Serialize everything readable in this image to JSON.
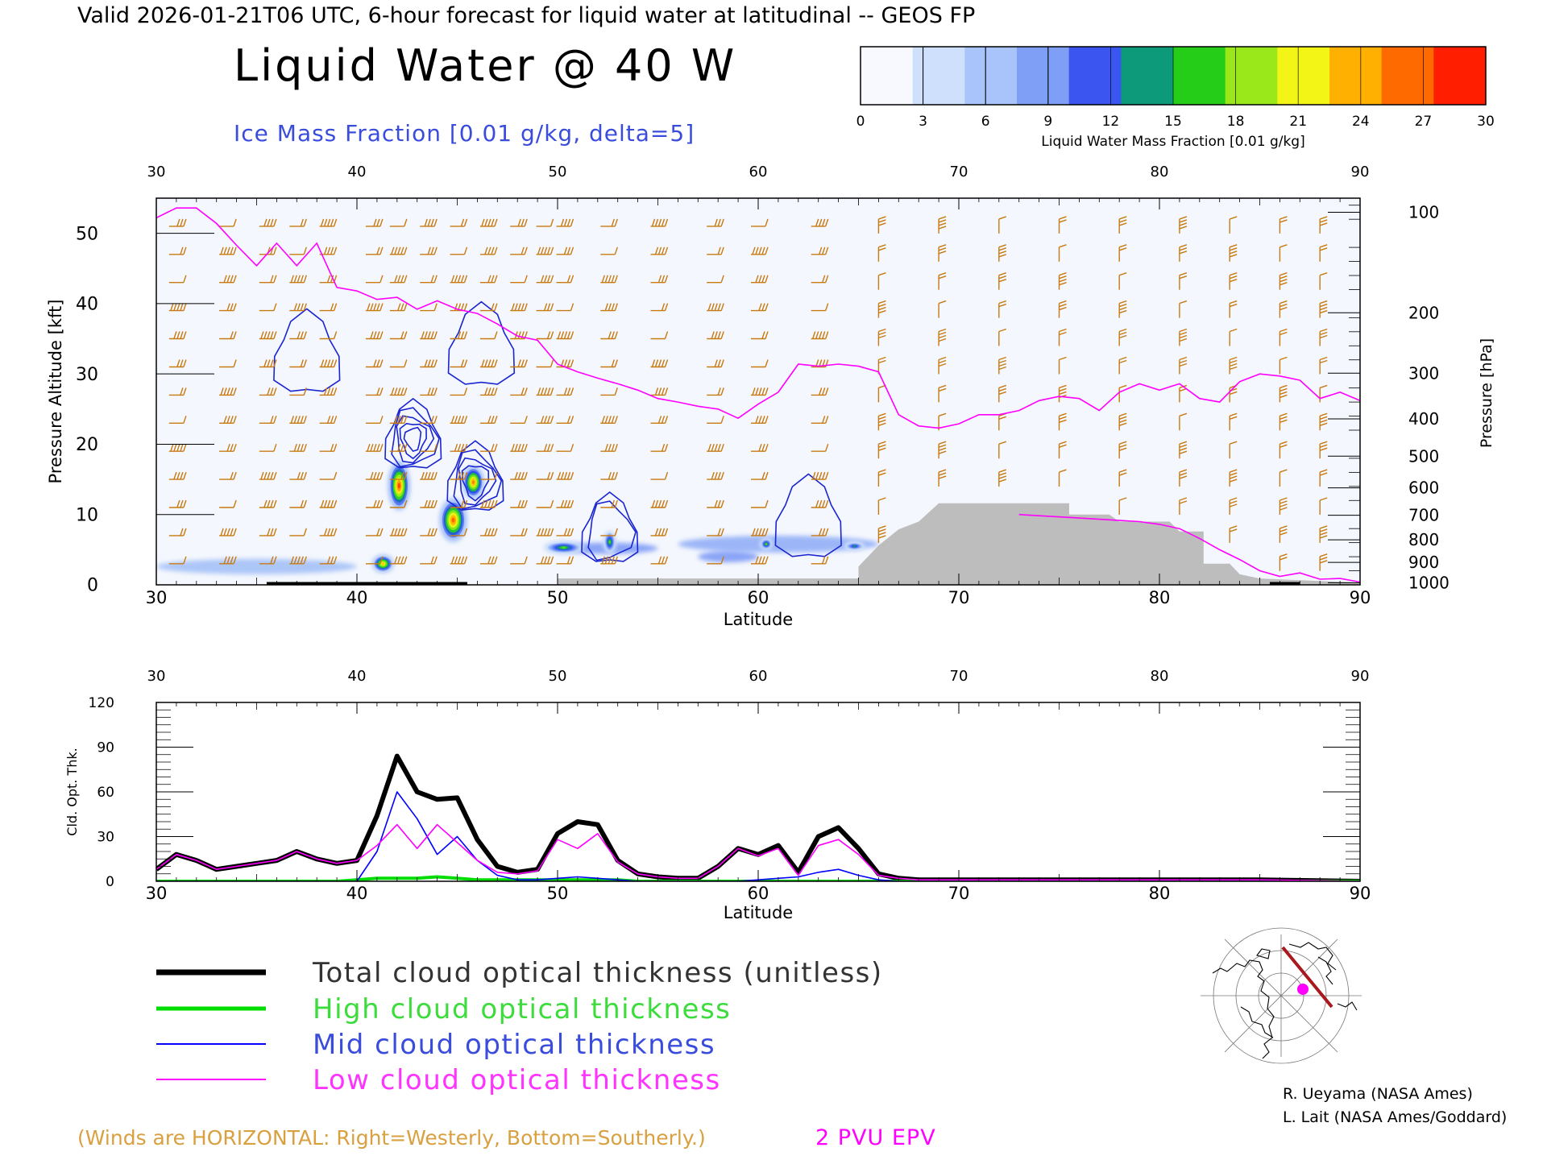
{
  "header": {
    "valid_line": "Valid 2026-01-21T06 UTC, 6-hour forecast for liquid water at latitudinal -- GEOS FP",
    "title": "Liquid Water @ 40 W",
    "ice_label": "Ice Mass Fraction [0.01 g/kg, delta=5]"
  },
  "colorbar": {
    "ticks": [
      "0",
      "3",
      "6",
      "9",
      "12",
      "15",
      "18",
      "21",
      "24",
      "27",
      "30"
    ],
    "label": "Liquid Water Mass Fraction [0.01 g/kg]",
    "colors": [
      "#f7f9fe",
      "#cfe0fc",
      "#a9c4fa",
      "#7f9ef6",
      "#3a55f0",
      "#0c9a7a",
      "#25cc18",
      "#9ae81a",
      "#f2f516",
      "#ffb000",
      "#ff6a00",
      "#ff1e00"
    ]
  },
  "colors": {
    "wind": "#c87a10",
    "epv": "#ff00ff",
    "ice_contour": "#1a25d0",
    "terrain": "#bdbdbd",
    "total": "#000000",
    "high": "#00dd00",
    "mid": "#0000ff",
    "low": "#ff00ff",
    "footer_wind": "#d9a040"
  },
  "chart_data": [
    {
      "type": "heatmap",
      "title": "Liquid Water @ 40 W",
      "xlabel": "Latitude",
      "ylabel": "Pressure Altitude [kft]",
      "ylabel_right": "Pressure [hPa]",
      "xlim": [
        30,
        90
      ],
      "ylim": [
        0,
        55
      ],
      "x_ticks": [
        "30",
        "40",
        "50",
        "60",
        "70",
        "80",
        "90"
      ],
      "y_ticks": [
        "0",
        "10",
        "20",
        "30",
        "40",
        "50"
      ],
      "pressure_ticks": [
        {
          "label": "100",
          "kft": 53
        },
        {
          "label": "200",
          "kft": 38.7
        },
        {
          "label": "300",
          "kft": 30.1
        },
        {
          "label": "400",
          "kft": 23.6
        },
        {
          "label": "500",
          "kft": 18.3
        },
        {
          "label": "600",
          "kft": 13.8
        },
        {
          "label": "700",
          "kft": 9.9
        },
        {
          "label": "800",
          "kft": 6.4
        },
        {
          "label": "900",
          "kft": 3.2
        },
        {
          "label": "1000",
          "kft": 0.3
        }
      ],
      "liquid_water_blobs": [
        {
          "lat": 42.1,
          "kft": 14.1,
          "peak": 29,
          "wlat": 0.55,
          "wkft": 3.6
        },
        {
          "lat": 41.3,
          "kft": 3.0,
          "peak": 24,
          "wlat": 0.55,
          "wkft": 1.3
        },
        {
          "lat": 44.8,
          "kft": 9.2,
          "peak": 28,
          "wlat": 0.7,
          "wkft": 3.2
        },
        {
          "lat": 45.8,
          "kft": 14.6,
          "peak": 27,
          "wlat": 0.55,
          "wkft": 2.4
        },
        {
          "lat": 50.3,
          "kft": 5.3,
          "peak": 17,
          "wlat": 1.0,
          "wkft": 0.9
        },
        {
          "lat": 52.6,
          "kft": 6.1,
          "peak": 17,
          "wlat": 0.3,
          "wkft": 1.6
        },
        {
          "lat": 60.4,
          "kft": 5.8,
          "peak": 17,
          "wlat": 0.3,
          "wkft": 0.8
        },
        {
          "lat": 64.8,
          "kft": 5.5,
          "peak": 14,
          "wlat": 0.5,
          "wkft": 0.6
        }
      ],
      "ice_contour_clusters": [
        {
          "lat": 42.8,
          "kft": 20.8,
          "levels": [
            5,
            10,
            15,
            20,
            25
          ]
        },
        {
          "lat": 45.9,
          "kft": 14.8,
          "levels": [
            5,
            10,
            15,
            20
          ]
        },
        {
          "lat": 52.6,
          "kft": 7.5,
          "levels": [
            5,
            10
          ]
        },
        {
          "lat": 62.5,
          "kft": 9.0,
          "levels": [
            5
          ]
        },
        {
          "lat": 37.5,
          "kft": 32.5,
          "levels": [
            5
          ]
        },
        {
          "lat": 46.2,
          "kft": 33.5,
          "levels": [
            5
          ]
        }
      ],
      "epv_2pvu_kft": [
        [
          30,
          52.2
        ],
        [
          31,
          53.6
        ],
        [
          32,
          53.6
        ],
        [
          33,
          51.4
        ],
        [
          34,
          48.3
        ],
        [
          35,
          45.4
        ],
        [
          36,
          48.6
        ],
        [
          37,
          45.4
        ],
        [
          38,
          48.6
        ],
        [
          39,
          42.3
        ],
        [
          40,
          41.8
        ],
        [
          41,
          40.6
        ],
        [
          42,
          40.9
        ],
        [
          43,
          39.2
        ],
        [
          44,
          40.4
        ],
        [
          45,
          39.2
        ],
        [
          46,
          38.6
        ],
        [
          47,
          37.1
        ],
        [
          48,
          35.4
        ],
        [
          49,
          34.8
        ],
        [
          50,
          31.4
        ],
        [
          51,
          30.3
        ],
        [
          52,
          29.4
        ],
        [
          53,
          28.6
        ],
        [
          54,
          27.7
        ],
        [
          55,
          26.5
        ],
        [
          56,
          26.0
        ],
        [
          57,
          25.4
        ],
        [
          58,
          25.0
        ],
        [
          59,
          23.7
        ],
        [
          60,
          25.7
        ],
        [
          61,
          27.4
        ],
        [
          62,
          31.4
        ],
        [
          63,
          31.1
        ],
        [
          64,
          31.4
        ],
        [
          65,
          31.1
        ],
        [
          66,
          30.3
        ],
        [
          67,
          24.2
        ],
        [
          68,
          22.6
        ],
        [
          69,
          22.3
        ],
        [
          70,
          22.9
        ],
        [
          71,
          24.2
        ],
        [
          72,
          24.2
        ],
        [
          73,
          24.8
        ],
        [
          74,
          26.2
        ],
        [
          75,
          26.8
        ],
        [
          76,
          26.5
        ],
        [
          77,
          24.8
        ],
        [
          78,
          27.4
        ],
        [
          79,
          28.6
        ],
        [
          80,
          27.7
        ],
        [
          81,
          28.6
        ],
        [
          82,
          26.5
        ],
        [
          83,
          26.0
        ],
        [
          84,
          28.9
        ],
        [
          85,
          30.0
        ],
        [
          86,
          29.7
        ],
        [
          87,
          29.1
        ],
        [
          88,
          26.5
        ],
        [
          89,
          27.4
        ],
        [
          90,
          26.2
        ]
      ],
      "epv_lower_kft": [
        [
          73,
          10.0
        ],
        [
          76,
          9.5
        ],
        [
          79,
          9.0
        ],
        [
          80,
          8.6
        ],
        [
          81,
          8.0
        ],
        [
          82,
          6.6
        ],
        [
          83,
          5.0
        ],
        [
          84,
          3.6
        ],
        [
          85,
          2.0
        ],
        [
          86,
          1.2
        ],
        [
          87,
          1.7
        ],
        [
          88,
          0.8
        ],
        [
          89,
          0.9
        ],
        [
          90,
          0.4
        ]
      ],
      "terrain_kft": [
        [
          30,
          0
        ],
        [
          35,
          0
        ],
        [
          50,
          0
        ],
        [
          50,
          0.9
        ],
        [
          65,
          0.9
        ],
        [
          65,
          2.6
        ],
        [
          66,
          5.6
        ],
        [
          67,
          7.9
        ],
        [
          68,
          9.0
        ],
        [
          69,
          11.6
        ],
        [
          75.5,
          11.6
        ],
        [
          75.5,
          10.0
        ],
        [
          77.5,
          10.0
        ],
        [
          78,
          9.0
        ],
        [
          80.5,
          9.0
        ],
        [
          81,
          7.6
        ],
        [
          82.2,
          7.6
        ],
        [
          82.2,
          3.0
        ],
        [
          83.5,
          3.0
        ],
        [
          84,
          1.5
        ],
        [
          85,
          0.9
        ],
        [
          90,
          0.3
        ]
      ],
      "wind_barb_columns": [
        31,
        33.5,
        35.5,
        37,
        38.5,
        40.8,
        42,
        43.5,
        45,
        46.5,
        48,
        49.3,
        50.3,
        52.5,
        55,
        57.8,
        60,
        63,
        66,
        69,
        72,
        75,
        78,
        81,
        83.5,
        86,
        88
      ],
      "wind_barb_levels_kft": [
        3,
        7,
        11,
        15,
        19,
        23,
        27,
        31,
        35,
        39,
        43,
        47,
        51
      ]
    },
    {
      "type": "line",
      "xlabel": "Latitude",
      "ylabel": "Cld. Opt. Thk.",
      "xlim": [
        30,
        90
      ],
      "ylim": [
        0,
        120
      ],
      "x_ticks": [
        "30",
        "40",
        "50",
        "60",
        "70",
        "80",
        "90"
      ],
      "y_ticks": [
        "0",
        "30",
        "60",
        "90",
        "120"
      ],
      "x": [
        30,
        31,
        32,
        33,
        34,
        35,
        36,
        37,
        38,
        39,
        40,
        41,
        42,
        43,
        44,
        45,
        46,
        47,
        48,
        49,
        50,
        51,
        52,
        53,
        54,
        55,
        56,
        57,
        58,
        59,
        60,
        61,
        62,
        63,
        64,
        65,
        66,
        67,
        68,
        69,
        70,
        75,
        80,
        85,
        90
      ],
      "series": [
        {
          "name": "Total cloud optical thickness (unitless)",
          "values": [
            8,
            18,
            14,
            8,
            10,
            12,
            14,
            20,
            15,
            12,
            14,
            44,
            84,
            60,
            55,
            56,
            28,
            10,
            6,
            8,
            32,
            40,
            38,
            14,
            5,
            3,
            2,
            2,
            10,
            22,
            18,
            24,
            6,
            30,
            36,
            22,
            5,
            2,
            1,
            1,
            1,
            1,
            1,
            1,
            0
          ]
        },
        {
          "name": "High cloud optical thickness",
          "values": [
            0,
            0,
            0,
            0,
            0,
            0,
            0,
            0,
            0,
            0,
            1,
            2,
            2,
            2,
            3,
            2,
            1,
            1,
            1,
            1,
            1,
            1,
            1,
            1,
            0,
            0,
            0,
            0,
            0,
            0,
            0,
            0,
            0,
            0,
            0,
            0,
            0,
            0,
            0,
            0,
            0,
            0,
            0,
            0,
            0
          ]
        },
        {
          "name": "Mid cloud optical thickness",
          "values": [
            0,
            0,
            0,
            0,
            0,
            0,
            0,
            0,
            0,
            0,
            0,
            20,
            60,
            42,
            18,
            30,
            14,
            4,
            1,
            1,
            2,
            3,
            2,
            1,
            0,
            0,
            0,
            0,
            0,
            0,
            1,
            2,
            3,
            6,
            8,
            4,
            1,
            0,
            0,
            0,
            0,
            0,
            0,
            0,
            0
          ]
        },
        {
          "name": "Low cloud optical thickness",
          "values": [
            8,
            18,
            14,
            8,
            10,
            12,
            14,
            20,
            15,
            12,
            14,
            24,
            38,
            22,
            38,
            26,
            14,
            6,
            5,
            7,
            28,
            22,
            32,
            13,
            5,
            3,
            2,
            2,
            10,
            22,
            17,
            22,
            4,
            24,
            28,
            18,
            4,
            2,
            1,
            1,
            1,
            1,
            1,
            1,
            0
          ]
        }
      ]
    }
  ],
  "legend": {
    "total": "Total cloud optical thickness (unitless)",
    "high": "High cloud optical thickness",
    "mid": "Mid cloud optical thickness",
    "low": "Low cloud optical thickness"
  },
  "credits": {
    "line1": "R. Ueyama (NASA Ames)",
    "line2": "L. Lait (NASA Ames/Goddard)"
  },
  "footer": {
    "winds_note": "(Winds are HORIZONTAL: Right=Westerly, Bottom=Southerly.)",
    "epv_label": "2 PVU EPV"
  }
}
